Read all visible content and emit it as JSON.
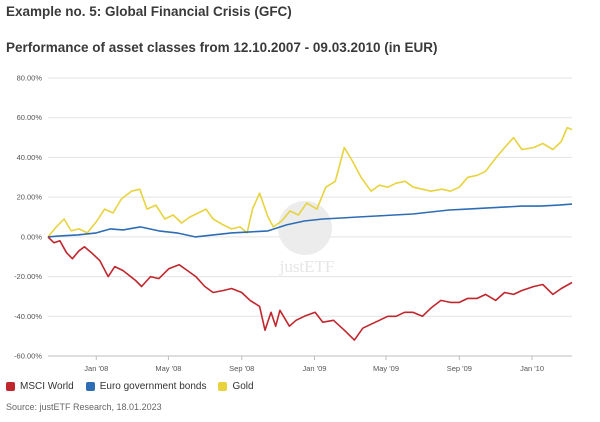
{
  "heading": "Example no. 5: Global Financial Crisis (GFC)",
  "subheading": "Performance of asset classes from 12.10.2007 - 09.03.2010 (in EUR)",
  "source": "Source: justETF Research, 18.01.2023",
  "watermark": "justETF",
  "chart_data": {
    "type": "line",
    "title": "Performance of asset classes from 12.10.2007 - 09.03.2010 (in EUR)",
    "xlim": [
      "2007-10-12",
      "2010-03-09"
    ],
    "ylim": [
      -60,
      80
    ],
    "y_ticks": [
      -60,
      -40,
      -20,
      0,
      20,
      40,
      60,
      80
    ],
    "y_tick_labels": [
      "-60.00%",
      "-40.00%",
      "-20.00%",
      "0.00%",
      "20.00%",
      "40.00%",
      "60.00%",
      "80.00%"
    ],
    "x_ticks": [
      {
        "date": "2008-01-01",
        "label": "Jan '08"
      },
      {
        "date": "2008-05-01",
        "label": "May '08"
      },
      {
        "date": "2008-09-01",
        "label": "Sep '08"
      },
      {
        "date": "2009-01-01",
        "label": "Jan '09"
      },
      {
        "date": "2009-05-01",
        "label": "May '09"
      },
      {
        "date": "2009-09-01",
        "label": "Sep '09"
      },
      {
        "date": "2010-01-01",
        "label": "Jan '10"
      }
    ],
    "grid": "horizontal",
    "legend_position": "bottom-left",
    "series": [
      {
        "name": "MSCI World",
        "color": "#c0272d",
        "points": [
          [
            "2007-10-12",
            0
          ],
          [
            "2007-10-22",
            -3
          ],
          [
            "2007-11-01",
            -2
          ],
          [
            "2007-11-12",
            -8
          ],
          [
            "2007-11-22",
            -11
          ],
          [
            "2007-12-03",
            -7
          ],
          [
            "2007-12-12",
            -5
          ],
          [
            "2007-12-24",
            -8
          ],
          [
            "2008-01-07",
            -12
          ],
          [
            "2008-01-21",
            -20
          ],
          [
            "2008-02-01",
            -15
          ],
          [
            "2008-02-15",
            -17
          ],
          [
            "2008-03-07",
            -22
          ],
          [
            "2008-03-17",
            -25
          ],
          [
            "2008-04-01",
            -20
          ],
          [
            "2008-04-15",
            -21
          ],
          [
            "2008-05-02",
            -16
          ],
          [
            "2008-05-19",
            -14
          ],
          [
            "2008-06-02",
            -17
          ],
          [
            "2008-06-16",
            -20
          ],
          [
            "2008-07-01",
            -25
          ],
          [
            "2008-07-15",
            -28
          ],
          [
            "2008-08-01",
            -27
          ],
          [
            "2008-08-15",
            -26
          ],
          [
            "2008-09-01",
            -28
          ],
          [
            "2008-09-15",
            -32
          ],
          [
            "2008-10-01",
            -35
          ],
          [
            "2008-10-10",
            -47
          ],
          [
            "2008-10-20",
            -38
          ],
          [
            "2008-10-28",
            -45
          ],
          [
            "2008-11-04",
            -37
          ],
          [
            "2008-11-20",
            -45
          ],
          [
            "2008-12-01",
            -42
          ],
          [
            "2008-12-15",
            -40
          ],
          [
            "2009-01-02",
            -38
          ],
          [
            "2009-01-15",
            -43
          ],
          [
            "2009-02-02",
            -42
          ],
          [
            "2009-02-20",
            -47
          ],
          [
            "2009-03-09",
            -52
          ],
          [
            "2009-03-23",
            -46
          ],
          [
            "2009-04-06",
            -44
          ],
          [
            "2009-04-20",
            -42
          ],
          [
            "2009-05-04",
            -40
          ],
          [
            "2009-05-18",
            -40
          ],
          [
            "2009-06-01",
            -38
          ],
          [
            "2009-06-15",
            -38
          ],
          [
            "2009-07-01",
            -40
          ],
          [
            "2009-07-15",
            -36
          ],
          [
            "2009-08-01",
            -32
          ],
          [
            "2009-08-17",
            -33
          ],
          [
            "2009-09-01",
            -33
          ],
          [
            "2009-09-15",
            -31
          ],
          [
            "2009-10-01",
            -31
          ],
          [
            "2009-10-15",
            -29
          ],
          [
            "2009-11-01",
            -32
          ],
          [
            "2009-11-16",
            -28
          ],
          [
            "2009-12-01",
            -29
          ],
          [
            "2009-12-15",
            -27
          ],
          [
            "2010-01-04",
            -25
          ],
          [
            "2010-01-19",
            -24
          ],
          [
            "2010-02-05",
            -29
          ],
          [
            "2010-02-19",
            -26
          ],
          [
            "2010-03-09",
            -23
          ]
        ]
      },
      {
        "name": "Euro government bonds",
        "color": "#2e6db4",
        "points": [
          [
            "2007-10-12",
            0
          ],
          [
            "2007-11-01",
            0.5
          ],
          [
            "2007-12-01",
            1
          ],
          [
            "2008-01-01",
            2
          ],
          [
            "2008-01-25",
            4
          ],
          [
            "2008-02-15",
            3.5
          ],
          [
            "2008-03-15",
            5
          ],
          [
            "2008-04-15",
            3
          ],
          [
            "2008-05-15",
            2
          ],
          [
            "2008-06-15",
            0
          ],
          [
            "2008-07-15",
            1
          ],
          [
            "2008-08-15",
            2
          ],
          [
            "2008-09-15",
            2.5
          ],
          [
            "2008-10-15",
            3
          ],
          [
            "2008-11-15",
            6
          ],
          [
            "2008-12-15",
            8
          ],
          [
            "2009-01-15",
            9
          ],
          [
            "2009-02-15",
            9.5
          ],
          [
            "2009-03-15",
            10
          ],
          [
            "2009-04-15",
            10.5
          ],
          [
            "2009-05-15",
            11
          ],
          [
            "2009-06-15",
            11.5
          ],
          [
            "2009-07-15",
            12.5
          ],
          [
            "2009-08-15",
            13.5
          ],
          [
            "2009-09-15",
            14
          ],
          [
            "2009-10-15",
            14.5
          ],
          [
            "2009-11-15",
            15
          ],
          [
            "2009-12-15",
            15.5
          ],
          [
            "2010-01-15",
            15.5
          ],
          [
            "2010-02-15",
            16
          ],
          [
            "2010-03-09",
            16.5
          ]
        ]
      },
      {
        "name": "Gold",
        "color": "#e8d33f",
        "points": [
          [
            "2007-10-12",
            0
          ],
          [
            "2007-10-26",
            5
          ],
          [
            "2007-11-08",
            9
          ],
          [
            "2007-11-20",
            3
          ],
          [
            "2007-12-03",
            4
          ],
          [
            "2007-12-17",
            2
          ],
          [
            "2008-01-02",
            8
          ],
          [
            "2008-01-15",
            14
          ],
          [
            "2008-01-29",
            12
          ],
          [
            "2008-02-12",
            19
          ],
          [
            "2008-02-29",
            23
          ],
          [
            "2008-03-14",
            24
          ],
          [
            "2008-03-26",
            14
          ],
          [
            "2008-04-10",
            16
          ],
          [
            "2008-04-25",
            9
          ],
          [
            "2008-05-09",
            11
          ],
          [
            "2008-05-23",
            7
          ],
          [
            "2008-06-06",
            10
          ],
          [
            "2008-06-20",
            12
          ],
          [
            "2008-07-03",
            14
          ],
          [
            "2008-07-15",
            9
          ],
          [
            "2008-08-01",
            6
          ],
          [
            "2008-08-15",
            4
          ],
          [
            "2008-08-29",
            5
          ],
          [
            "2008-09-10",
            2
          ],
          [
            "2008-09-19",
            14
          ],
          [
            "2008-10-01",
            22
          ],
          [
            "2008-10-15",
            10
          ],
          [
            "2008-10-24",
            5
          ],
          [
            "2008-11-07",
            8
          ],
          [
            "2008-11-21",
            13
          ],
          [
            "2008-12-05",
            11
          ],
          [
            "2008-12-19",
            17
          ],
          [
            "2009-01-05",
            14
          ],
          [
            "2009-01-20",
            25
          ],
          [
            "2009-02-05",
            28
          ],
          [
            "2009-02-20",
            45
          ],
          [
            "2009-03-06",
            38
          ],
          [
            "2009-03-20",
            30
          ],
          [
            "2009-04-06",
            23
          ],
          [
            "2009-04-20",
            26
          ],
          [
            "2009-05-04",
            25
          ],
          [
            "2009-05-18",
            27
          ],
          [
            "2009-06-02",
            28
          ],
          [
            "2009-06-16",
            25
          ],
          [
            "2009-07-01",
            24
          ],
          [
            "2009-07-15",
            23
          ],
          [
            "2009-08-03",
            24
          ],
          [
            "2009-08-17",
            23
          ],
          [
            "2009-09-01",
            25
          ],
          [
            "2009-09-15",
            30
          ],
          [
            "2009-10-01",
            31
          ],
          [
            "2009-10-15",
            33
          ],
          [
            "2009-11-02",
            40
          ],
          [
            "2009-11-16",
            45
          ],
          [
            "2009-12-01",
            50
          ],
          [
            "2009-12-15",
            44
          ],
          [
            "2010-01-04",
            45
          ],
          [
            "2010-01-19",
            47
          ],
          [
            "2010-02-05",
            44
          ],
          [
            "2010-02-19",
            48
          ],
          [
            "2010-03-01",
            55
          ],
          [
            "2010-03-09",
            54
          ]
        ]
      }
    ]
  }
}
